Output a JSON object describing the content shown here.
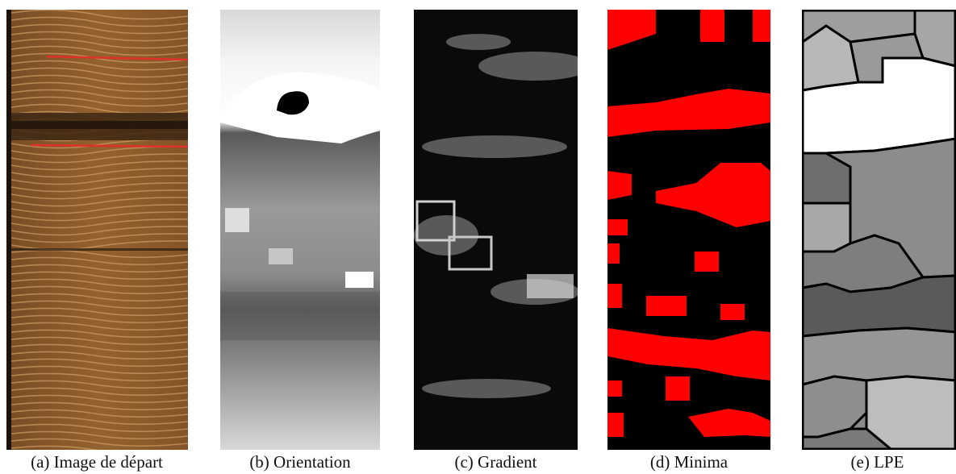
{
  "figure": {
    "panels": [
      {
        "id": "a",
        "caption": "(a) Image de départ"
      },
      {
        "id": "b",
        "caption": "(b) Orientation"
      },
      {
        "id": "c",
        "caption": "(c) Gradient"
      },
      {
        "id": "d",
        "caption": "(d) Minima"
      },
      {
        "id": "e",
        "caption": "(e) LPE"
      }
    ],
    "colors": {
      "wood": "#8a5a2e",
      "wood_ring": "#c89a62",
      "marker_line": "#e0302a",
      "minima": "#ff0000",
      "background": "#000000",
      "region_border": "#000000"
    }
  }
}
